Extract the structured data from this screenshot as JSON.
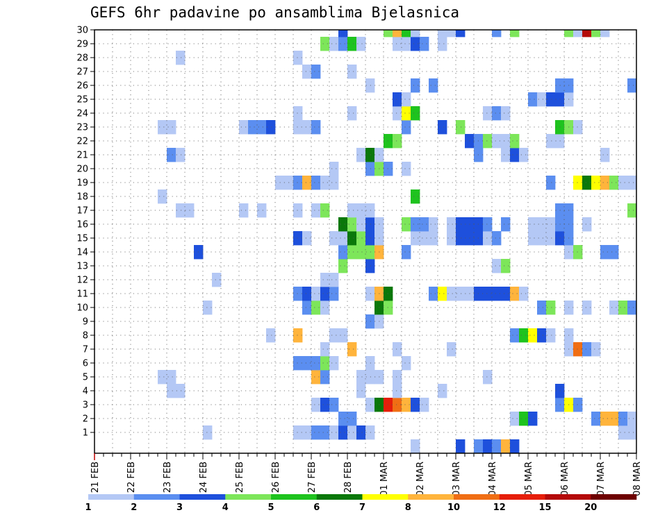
{
  "chart_data": {
    "type": "heatmap",
    "title": "GEFS 6hr padavine po ansamblima Bjelasnica",
    "xlabel": "",
    "ylabel": "",
    "y_range": [
      0,
      30
    ],
    "y_ticks": [
      1,
      2,
      3,
      4,
      5,
      6,
      7,
      8,
      9,
      10,
      11,
      12,
      13,
      14,
      15,
      16,
      17,
      18,
      19,
      20,
      21,
      22,
      23,
      24,
      25,
      26,
      27,
      28,
      29,
      30
    ],
    "x_ticks": [
      {
        "label": "21 FEB",
        "step": 0
      },
      {
        "label": "22 FEB",
        "step": 4
      },
      {
        "label": "23 FEB",
        "step": 8
      },
      {
        "label": "24 FEB",
        "step": 12
      },
      {
        "label": "25 FEB",
        "step": 16
      },
      {
        "label": "26 FEB",
        "step": 20
      },
      {
        "label": "27 FEB",
        "step": 24
      },
      {
        "label": "28 FEB",
        "step": 28
      },
      {
        "label": "01 MAR",
        "step": 32
      },
      {
        "label": "02 MAR",
        "step": 36
      },
      {
        "label": "03 MAR",
        "step": 40
      },
      {
        "label": "04 MAR",
        "step": 44
      },
      {
        "label": "05 MAR",
        "step": 48
      },
      {
        "label": "06 MAR",
        "step": 52
      },
      {
        "label": "07 MAR",
        "step": 56
      },
      {
        "label": "08 MAR",
        "step": 60
      }
    ],
    "x_steps": 60,
    "grid": "dotted",
    "legend_position": "bottom",
    "legend": {
      "labels": [
        "1",
        "2",
        "3",
        "4",
        "5",
        "6",
        "7",
        "8",
        "10",
        "12",
        "15",
        "20"
      ],
      "colors": [
        "#b4c8f5",
        "#5b8ef0",
        "#1e50dc",
        "#7de65a",
        "#1ec31e",
        "#0a780a",
        "#ffff00",
        "#ffb43c",
        "#f06e14",
        "#e61e0a",
        "#b40a0a",
        "#6e0000"
      ]
    },
    "colors_by_class": {
      "1": "#b4c8f5",
      "2": "#5b8ef0",
      "3": "#1e50dc",
      "4": "#7de65a",
      "5": "#1ec31e",
      "6": "#0a780a",
      "7": "#ffff00",
      "8": "#ffb43c",
      "10": "#f06e14",
      "12": "#e61e0a",
      "15": "#b40a0a"
    },
    "cells": [
      [
        1,
        13,
        1
      ],
      [
        1,
        23,
        1
      ],
      [
        1,
        24,
        1
      ],
      [
        1,
        25,
        2
      ],
      [
        1,
        26,
        2
      ],
      [
        1,
        27,
        1
      ],
      [
        1,
        28,
        3
      ],
      [
        1,
        29,
        1
      ],
      [
        1,
        30,
        3
      ],
      [
        1,
        31,
        1
      ],
      [
        1,
        59,
        1
      ],
      [
        1,
        60,
        1
      ],
      [
        2,
        28,
        2
      ],
      [
        2,
        29,
        2
      ],
      [
        2,
        47,
        1
      ],
      [
        2,
        48,
        5
      ],
      [
        2,
        49,
        3
      ],
      [
        2,
        56,
        2
      ],
      [
        2,
        57,
        8
      ],
      [
        2,
        58,
        8
      ],
      [
        2,
        59,
        2
      ],
      [
        2,
        60,
        1
      ],
      [
        3,
        25,
        1
      ],
      [
        3,
        26,
        3
      ],
      [
        3,
        27,
        2
      ],
      [
        3,
        31,
        1
      ],
      [
        3,
        32,
        6
      ],
      [
        3,
        33,
        12
      ],
      [
        3,
        34,
        10
      ],
      [
        3,
        35,
        8
      ],
      [
        3,
        36,
        3
      ],
      [
        3,
        37,
        1
      ],
      [
        3,
        52,
        2
      ],
      [
        3,
        53,
        7
      ],
      [
        3,
        54,
        2
      ],
      [
        4,
        9,
        1
      ],
      [
        4,
        10,
        1
      ],
      [
        4,
        30,
        1
      ],
      [
        4,
        34,
        1
      ],
      [
        4,
        39,
        1
      ],
      [
        4,
        52,
        3
      ],
      [
        5,
        8,
        1
      ],
      [
        5,
        9,
        1
      ],
      [
        5,
        25,
        8
      ],
      [
        5,
        26,
        2
      ],
      [
        5,
        30,
        1
      ],
      [
        5,
        31,
        1
      ],
      [
        5,
        32,
        1
      ],
      [
        5,
        34,
        1
      ],
      [
        5,
        44,
        1
      ],
      [
        6,
        23,
        2
      ],
      [
        6,
        24,
        2
      ],
      [
        6,
        25,
        2
      ],
      [
        6,
        26,
        4
      ],
      [
        6,
        27,
        1
      ],
      [
        6,
        31,
        1
      ],
      [
        6,
        35,
        1
      ],
      [
        7,
        26,
        1
      ],
      [
        7,
        29,
        8
      ],
      [
        7,
        34,
        1
      ],
      [
        7,
        40,
        1
      ],
      [
        7,
        53,
        1
      ],
      [
        7,
        54,
        10
      ],
      [
        7,
        55,
        2
      ],
      [
        7,
        56,
        1
      ],
      [
        8,
        20,
        1
      ],
      [
        8,
        23,
        8
      ],
      [
        8,
        27,
        1
      ],
      [
        8,
        28,
        1
      ],
      [
        8,
        47,
        2
      ],
      [
        8,
        48,
        5
      ],
      [
        8,
        49,
        7
      ],
      [
        8,
        50,
        3
      ],
      [
        8,
        51,
        1
      ],
      [
        8,
        53,
        1
      ],
      [
        9,
        31,
        2
      ],
      [
        9,
        32,
        1
      ],
      [
        10,
        13,
        1
      ],
      [
        10,
        24,
        2
      ],
      [
        10,
        25,
        4
      ],
      [
        10,
        26,
        1
      ],
      [
        10,
        32,
        6
      ],
      [
        10,
        33,
        4
      ],
      [
        10,
        50,
        2
      ],
      [
        10,
        51,
        4
      ],
      [
        10,
        53,
        1
      ],
      [
        10,
        55,
        1
      ],
      [
        10,
        58,
        1
      ],
      [
        10,
        59,
        4
      ],
      [
        10,
        60,
        2
      ],
      [
        11,
        23,
        2
      ],
      [
        11,
        24,
        3
      ],
      [
        11,
        25,
        1
      ],
      [
        11,
        26,
        3
      ],
      [
        11,
        27,
        2
      ],
      [
        11,
        31,
        1
      ],
      [
        11,
        32,
        8
      ],
      [
        11,
        33,
        6
      ],
      [
        11,
        38,
        2
      ],
      [
        11,
        39,
        7
      ],
      [
        11,
        40,
        1
      ],
      [
        11,
        41,
        1
      ],
      [
        11,
        42,
        1
      ],
      [
        11,
        43,
        3
      ],
      [
        11,
        44,
        3
      ],
      [
        11,
        45,
        3
      ],
      [
        11,
        46,
        3
      ],
      [
        11,
        47,
        8
      ],
      [
        11,
        48,
        1
      ],
      [
        12,
        14,
        1
      ],
      [
        12,
        26,
        1
      ],
      [
        12,
        27,
        1
      ],
      [
        13,
        28,
        4
      ],
      [
        13,
        31,
        3
      ],
      [
        13,
        45,
        1
      ],
      [
        13,
        46,
        4
      ],
      [
        14,
        12,
        3
      ],
      [
        14,
        28,
        2
      ],
      [
        14,
        29,
        4
      ],
      [
        14,
        30,
        4
      ],
      [
        14,
        31,
        4
      ],
      [
        14,
        32,
        8
      ],
      [
        14,
        35,
        2
      ],
      [
        14,
        53,
        1
      ],
      [
        14,
        54,
        4
      ],
      [
        14,
        57,
        2
      ],
      [
        14,
        58,
        2
      ],
      [
        15,
        23,
        3
      ],
      [
        15,
        24,
        1
      ],
      [
        15,
        27,
        1
      ],
      [
        15,
        28,
        1
      ],
      [
        15,
        29,
        6
      ],
      [
        15,
        30,
        4
      ],
      [
        15,
        31,
        3
      ],
      [
        15,
        32,
        1
      ],
      [
        15,
        36,
        1
      ],
      [
        15,
        37,
        1
      ],
      [
        15,
        38,
        1
      ],
      [
        15,
        40,
        1
      ],
      [
        15,
        41,
        3
      ],
      [
        15,
        42,
        3
      ],
      [
        15,
        43,
        3
      ],
      [
        15,
        44,
        1
      ],
      [
        15,
        45,
        2
      ],
      [
        15,
        49,
        1
      ],
      [
        15,
        50,
        1
      ],
      [
        15,
        51,
        1
      ],
      [
        15,
        52,
        3
      ],
      [
        15,
        53,
        2
      ],
      [
        16,
        28,
        6
      ],
      [
        16,
        29,
        4
      ],
      [
        16,
        30,
        1
      ],
      [
        16,
        31,
        3
      ],
      [
        16,
        32,
        1
      ],
      [
        16,
        35,
        4
      ],
      [
        16,
        36,
        2
      ],
      [
        16,
        37,
        2
      ],
      [
        16,
        38,
        1
      ],
      [
        16,
        40,
        1
      ],
      [
        16,
        41,
        3
      ],
      [
        16,
        42,
        3
      ],
      [
        16,
        43,
        3
      ],
      [
        16,
        44,
        2
      ],
      [
        16,
        46,
        2
      ],
      [
        16,
        49,
        1
      ],
      [
        16,
        50,
        1
      ],
      [
        16,
        51,
        1
      ],
      [
        16,
        52,
        2
      ],
      [
        16,
        53,
        2
      ],
      [
        16,
        55,
        1
      ],
      [
        17,
        10,
        1
      ],
      [
        17,
        11,
        1
      ],
      [
        17,
        17,
        1
      ],
      [
        17,
        19,
        1
      ],
      [
        17,
        23,
        1
      ],
      [
        17,
        25,
        1
      ],
      [
        17,
        26,
        4
      ],
      [
        17,
        29,
        1
      ],
      [
        17,
        30,
        1
      ],
      [
        17,
        31,
        1
      ],
      [
        17,
        52,
        2
      ],
      [
        17,
        53,
        2
      ],
      [
        17,
        60,
        4
      ],
      [
        18,
        8,
        1
      ],
      [
        18,
        36,
        5
      ],
      [
        19,
        21,
        1
      ],
      [
        19,
        22,
        1
      ],
      [
        19,
        23,
        2
      ],
      [
        19,
        24,
        8
      ],
      [
        19,
        25,
        2
      ],
      [
        19,
        26,
        1
      ],
      [
        19,
        27,
        1
      ],
      [
        19,
        51,
        2
      ],
      [
        19,
        54,
        7
      ],
      [
        19,
        55,
        6
      ],
      [
        19,
        56,
        7
      ],
      [
        19,
        57,
        8
      ],
      [
        19,
        58,
        4
      ],
      [
        19,
        59,
        1
      ],
      [
        19,
        60,
        1
      ],
      [
        20,
        27,
        1
      ],
      [
        20,
        31,
        2
      ],
      [
        20,
        32,
        4
      ],
      [
        20,
        33,
        2
      ],
      [
        20,
        35,
        1
      ],
      [
        21,
        9,
        2
      ],
      [
        21,
        10,
        1
      ],
      [
        21,
        30,
        1
      ],
      [
        21,
        31,
        6
      ],
      [
        21,
        32,
        1
      ],
      [
        21,
        43,
        2
      ],
      [
        21,
        46,
        1
      ],
      [
        21,
        47,
        3
      ],
      [
        21,
        48,
        1
      ],
      [
        21,
        57,
        1
      ],
      [
        22,
        33,
        5
      ],
      [
        22,
        34,
        4
      ],
      [
        22,
        42,
        3
      ],
      [
        22,
        43,
        2
      ],
      [
        22,
        44,
        4
      ],
      [
        22,
        45,
        1
      ],
      [
        22,
        46,
        1
      ],
      [
        22,
        47,
        4
      ],
      [
        22,
        51,
        1
      ],
      [
        22,
        52,
        1
      ],
      [
        23,
        8,
        1
      ],
      [
        23,
        9,
        1
      ],
      [
        23,
        17,
        1
      ],
      [
        23,
        18,
        2
      ],
      [
        23,
        19,
        2
      ],
      [
        23,
        20,
        3
      ],
      [
        23,
        23,
        1
      ],
      [
        23,
        24,
        1
      ],
      [
        23,
        25,
        2
      ],
      [
        23,
        35,
        2
      ],
      [
        23,
        39,
        3
      ],
      [
        23,
        41,
        4
      ],
      [
        23,
        52,
        5
      ],
      [
        23,
        53,
        4
      ],
      [
        23,
        54,
        1
      ],
      [
        24,
        23,
        1
      ],
      [
        24,
        29,
        1
      ],
      [
        24,
        34,
        1
      ],
      [
        24,
        35,
        7
      ],
      [
        24,
        36,
        5
      ],
      [
        24,
        44,
        1
      ],
      [
        24,
        45,
        2
      ],
      [
        24,
        46,
        1
      ],
      [
        25,
        34,
        3
      ],
      [
        25,
        35,
        1
      ],
      [
        25,
        49,
        2
      ],
      [
        25,
        50,
        1
      ],
      [
        25,
        51,
        3
      ],
      [
        25,
        52,
        3
      ],
      [
        25,
        53,
        1
      ],
      [
        26,
        31,
        1
      ],
      [
        26,
        36,
        2
      ],
      [
        26,
        38,
        2
      ],
      [
        26,
        52,
        2
      ],
      [
        26,
        53,
        2
      ],
      [
        26,
        60,
        2
      ],
      [
        27,
        24,
        1
      ],
      [
        27,
        25,
        2
      ],
      [
        27,
        29,
        1
      ],
      [
        28,
        10,
        1
      ],
      [
        28,
        23,
        1
      ],
      [
        29,
        26,
        4
      ],
      [
        29,
        27,
        1
      ],
      [
        29,
        28,
        2
      ],
      [
        29,
        29,
        5
      ],
      [
        29,
        30,
        1
      ],
      [
        29,
        34,
        1
      ],
      [
        29,
        35,
        1
      ],
      [
        29,
        36,
        3
      ],
      [
        29,
        37,
        2
      ],
      [
        29,
        39,
        1
      ],
      [
        30,
        28,
        3
      ],
      [
        30,
        33,
        4
      ],
      [
        30,
        34,
        8
      ],
      [
        30,
        35,
        5
      ],
      [
        30,
        36,
        1
      ],
      [
        30,
        39,
        1
      ],
      [
        30,
        40,
        1
      ],
      [
        30,
        41,
        3
      ],
      [
        30,
        45,
        2
      ],
      [
        30,
        47,
        4
      ],
      [
        30,
        53,
        4
      ],
      [
        30,
        54,
        1
      ],
      [
        30,
        55,
        15
      ],
      [
        30,
        56,
        4
      ],
      [
        30,
        57,
        1
      ],
      [
        0,
        36,
        1
      ],
      [
        0,
        41,
        3
      ],
      [
        0,
        43,
        2
      ],
      [
        0,
        44,
        3
      ],
      [
        0,
        45,
        2
      ],
      [
        0,
        46,
        8
      ],
      [
        0,
        47,
        3
      ]
    ]
  }
}
